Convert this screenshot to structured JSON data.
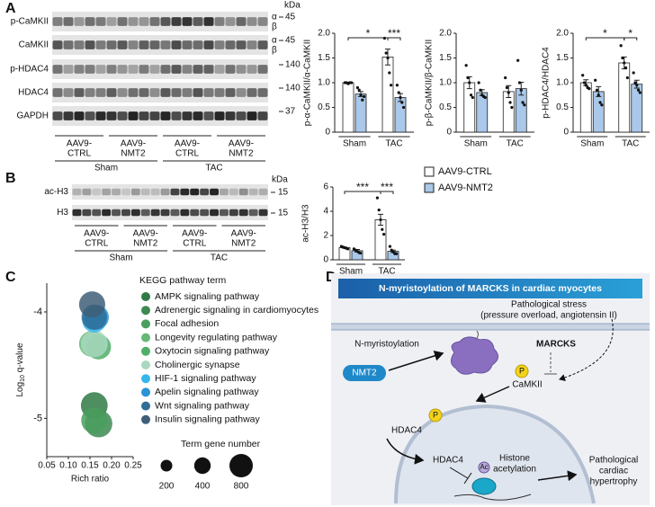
{
  "panels": [
    "A",
    "B",
    "C",
    "D"
  ],
  "blots_a": {
    "rows": [
      "p-CaMKII",
      "CaMKII",
      "p-HDAC4",
      "HDAC4",
      "GAPDH"
    ],
    "unit": "kDa",
    "mw": [
      45,
      45,
      140,
      140,
      37
    ],
    "isoforms": [
      [
        "α",
        "β"
      ],
      [
        "α",
        "β"
      ]
    ],
    "groups": [
      [
        "AAV9-",
        "CTRL"
      ],
      [
        "AAV9-",
        "NMT2"
      ],
      [
        "AAV9-",
        "CTRL"
      ],
      [
        "AAV9-",
        "NMT2"
      ]
    ],
    "conditions": [
      "Sham",
      "TAC"
    ]
  },
  "blots_b": {
    "rows": [
      "ac-H3",
      "H3"
    ],
    "unit": "kDa",
    "mw": [
      15,
      15
    ],
    "groups": [
      [
        "AAV9-",
        "CTRL"
      ],
      [
        "AAV9-",
        "NMT2"
      ],
      [
        "AAV9-",
        "CTRL"
      ],
      [
        "AAV9-",
        "NMT2"
      ]
    ],
    "conditions": [
      "Sham",
      "TAC"
    ]
  },
  "chart_data": [
    {
      "type": "bar",
      "y_label": "p-α-CaMKII/α-CaMKII",
      "categories": [
        "Sham",
        "TAC"
      ],
      "ylim": [
        0,
        2
      ],
      "yticks": [
        0,
        0.5,
        {
          "value": 1,
          "label": "1.0"
        },
        1.5,
        {
          "value": 2,
          "label": "2.0"
        }
      ],
      "annotations": [
        "*",
        "***"
      ],
      "series": [
        {
          "color": "#ffffff",
          "values": [
            1.0,
            1.52
          ],
          "errors": [
            0.01,
            0.16
          ],
          "points": [
            [
              1.0,
              1.0,
              0.98,
              1.0,
              1.0
            ],
            [
              1.9,
              1.6,
              1.5,
              1.2,
              0.95
            ]
          ]
        },
        {
          "color": "#a9c8ea",
          "values": [
            0.77,
            0.7
          ],
          "errors": [
            0.05,
            0.08
          ],
          "points": [
            [
              0.9,
              0.85,
              0.75,
              0.65,
              0.72
            ],
            [
              0.95,
              0.8,
              0.7,
              0.6,
              0.5
            ]
          ]
        }
      ]
    },
    {
      "type": "bar",
      "y_label": "p-β-CaMKII/β-CaMKII",
      "categories": [
        "Sham",
        "TAC"
      ],
      "ylim": [
        0,
        2
      ],
      "yticks": [
        0,
        0.5,
        {
          "value": 1,
          "label": "1.0"
        },
        1.5,
        {
          "value": 2,
          "label": "2.0"
        }
      ],
      "series": [
        {
          "color": "#ffffff",
          "values": [
            1.0,
            0.82
          ],
          "errors": [
            0.12,
            0.12
          ],
          "points": [
            [
              1.35,
              1.1,
              1.0,
              0.75,
              0.7
            ],
            [
              1.1,
              0.9,
              0.8,
              0.6,
              0.5
            ]
          ]
        },
        {
          "color": "#a9c8ea",
          "values": [
            0.8,
            0.88
          ],
          "errors": [
            0.06,
            0.13
          ],
          "points": [
            [
              1.0,
              0.85,
              0.75,
              0.72,
              0.7
            ],
            [
              1.45,
              1.0,
              0.85,
              0.6,
              0.55
            ]
          ]
        }
      ]
    },
    {
      "type": "bar",
      "y_label": "p-HDAC4/HDAC4",
      "categories": [
        "Sham",
        "TAC"
      ],
      "ylim": [
        0,
        2
      ],
      "yticks": [
        0,
        0.5,
        {
          "value": 1,
          "label": "1.0"
        },
        1.5,
        {
          "value": 2,
          "label": "2.0"
        }
      ],
      "annotations": [
        "*",
        "*"
      ],
      "series": [
        {
          "color": "#ffffff",
          "values": [
            1.0,
            1.4
          ],
          "errors": [
            0.06,
            0.12
          ],
          "points": [
            [
              1.15,
              1.0,
              0.95,
              0.9,
              0.88
            ],
            [
              1.75,
              1.5,
              1.4,
              1.3,
              1.1
            ]
          ]
        },
        {
          "color": "#a9c8ea",
          "values": [
            0.82,
            0.97
          ],
          "errors": [
            0.1,
            0.08
          ],
          "points": [
            [
              1.05,
              0.85,
              0.75,
              0.6,
              0.55
            ],
            [
              1.2,
              1.0,
              0.95,
              0.85,
              0.8
            ]
          ]
        }
      ]
    },
    {
      "type": "bar",
      "y_label": "ac-H3/H3",
      "categories": [
        "Sham",
        "TAC"
      ],
      "ylim": [
        0,
        6
      ],
      "yticks": [
        0,
        2,
        4,
        6
      ],
      "annotations": [
        "***",
        "***"
      ],
      "series": [
        {
          "name": "AAV9-CTRL",
          "color": "#ffffff",
          "values": [
            1.0,
            3.3
          ],
          "errors": [
            0.05,
            0.45
          ],
          "points": [
            [
              1.1,
              1.05,
              1.0,
              0.95,
              0.9
            ],
            [
              5.1,
              4.1,
              3.3,
              2.5,
              2.1
            ]
          ]
        },
        {
          "name": "AAV9-NMT2",
          "color": "#a9c8ea",
          "values": [
            0.75,
            0.7
          ],
          "errors": [
            0.1,
            0.1
          ],
          "points": [
            [
              0.9,
              0.8,
              0.7,
              0.6,
              0.55
            ],
            [
              1.1,
              0.8,
              0.65,
              0.5,
              0.5
            ]
          ]
        }
      ]
    },
    {
      "type": "bubble",
      "legend_title": "KEGG pathway term",
      "x_label": "Rich ratio",
      "y_label": {
        "text": "Log",
        "subscript": "10",
        "suffix": " q-value"
      },
      "xlim": [
        0.05,
        0.25
      ],
      "xticks": [
        0.05,
        {
          "value": 0.1,
          "label": "0.10"
        },
        0.15,
        {
          "value": 0.2,
          "label": "0.20"
        },
        0.25
      ],
      "ylim": [
        -5.36,
        -3.73
      ],
      "yticks": [
        -4,
        -5
      ],
      "labels": [
        "AMPK signaling pathway",
        "Adrenergic signaling in cardiomyocytes",
        "Focal adhesion",
        "Longevity regulating pathway",
        "Oxytocin signaling pathway",
        "Cholinergic synapse",
        "HIF-1 signaling pathway",
        "Apelin signaling pathway",
        "Wnt signaling pathway",
        "Insulin signaling pathway"
      ],
      "colors": [
        "#2f7a45",
        "#3d8a52",
        "#4a9e5e",
        "#66b877",
        "#4fae68",
        "#a9d8c0",
        "#36b7ec",
        "#2a93d6",
        "#2f6e98",
        "#3f5f78"
      ],
      "x": [
        0.16,
        0.17,
        0.16,
        0.155,
        0.17,
        0.16,
        0.16,
        0.165,
        0.16,
        0.155
      ],
      "values": [
        -4.88,
        -5.05,
        -5.02,
        -4.3,
        -4.33,
        -4.3,
        -4.08,
        -4.05,
        -4.05,
        -3.93
      ],
      "sizes": [
        1050,
        1100,
        1000,
        1000,
        900,
        1050,
        850,
        900,
        950,
        1000
      ],
      "size_legend": {
        "title": "Term gene number",
        "values": [
          200,
          400,
          800
        ]
      }
    }
  ],
  "diagram": {
    "title": "N-myristoylation of MARCKS in cardiac myocytes",
    "stress": [
      "Pathological stress",
      "(pressure overload, angiotensin II)"
    ],
    "myristoylation": "N-myristoylation",
    "marcks": "MARCKS",
    "nmt2": "NMT2",
    "phospho": "P",
    "camkii": "CaMKII",
    "hdac4": "HDAC4",
    "acetyl": "Ac",
    "histone": [
      "Histone",
      "acetylation"
    ],
    "outcome": [
      "Pathological",
      "cardiac",
      "hypertrophy"
    ]
  }
}
